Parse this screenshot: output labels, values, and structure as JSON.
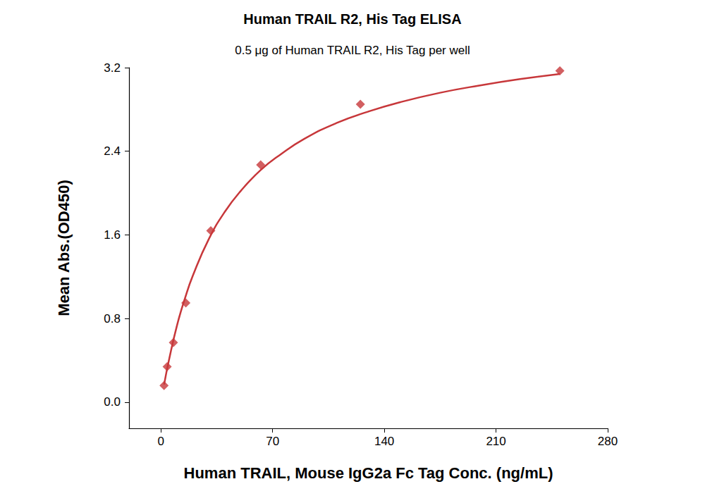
{
  "chart_data": {
    "type": "scatter",
    "title": "Human TRAIL R2, His Tag ELISA",
    "subtitle": "0.5 μg of Human TRAIL R2, His Tag per well",
    "x_label": "Human TRAIL, Mouse IgG2a Fc Tag Conc. (ng/mL)",
    "y_label": "Mean Abs.(OD450)",
    "xlim": [
      -20,
      280
    ],
    "xticks": [
      0,
      70,
      140,
      210,
      280
    ],
    "ylim": [
      -0.25,
      3.2
    ],
    "yticks": [
      {
        "value": 0,
        "label": "0.0"
      },
      {
        "value": 0.8,
        "label": "0.8"
      },
      {
        "value": 1.6,
        "label": "1.6"
      },
      {
        "value": 2.4,
        "label": "2.4"
      },
      {
        "value": 3.2,
        "label": "3.2"
      }
    ],
    "grid": false,
    "series": [
      {
        "type": "scatter",
        "marker": "diamond",
        "color": "#c7373a",
        "x": [
          1.95,
          3.9,
          7.8,
          15.6,
          31.25,
          62.5,
          125,
          250
        ],
        "values": [
          0.16,
          0.34,
          0.57,
          0.95,
          1.64,
          2.27,
          2.85,
          3.17
        ]
      },
      {
        "type": "line",
        "line_style": "solid",
        "color": "#c7373a",
        "x": [
          2,
          5,
          10,
          15,
          20,
          30,
          40,
          50,
          62.5,
          75,
          90,
          110,
          130,
          150,
          175,
          200,
          225,
          250
        ],
        "values": [
          0.17,
          0.4,
          0.73,
          0.99,
          1.21,
          1.56,
          1.82,
          2.02,
          2.22,
          2.37,
          2.52,
          2.67,
          2.78,
          2.87,
          2.96,
          3.03,
          3.09,
          3.14
        ]
      }
    ]
  }
}
